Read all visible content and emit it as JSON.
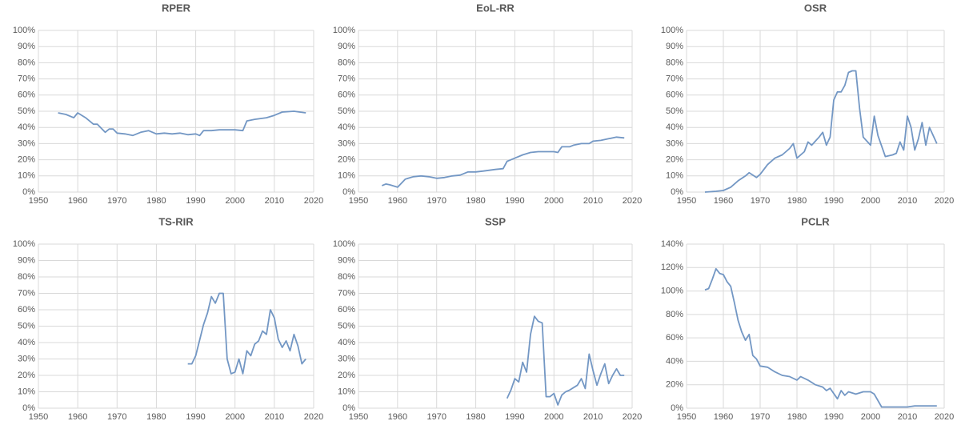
{
  "chart_data": [
    {
      "type": "line",
      "title": "RPER",
      "color": "#7397c4",
      "grid": true,
      "x": [
        1955,
        1957,
        1959,
        1960,
        1962,
        1964,
        1965,
        1967,
        1968,
        1969,
        1970,
        1972,
        1974,
        1976,
        1978,
        1980,
        1982,
        1984,
        1986,
        1988,
        1990,
        1991,
        1992,
        1994,
        1996,
        1998,
        2000,
        2002,
        2003,
        2005,
        2008,
        2010,
        2012,
        2015,
        2018
      ],
      "values": [
        49,
        48,
        46,
        49,
        46,
        42,
        42,
        37,
        39,
        39,
        36.5,
        36,
        35,
        37,
        38,
        36,
        36.5,
        36,
        36.5,
        35.5,
        36,
        35,
        38,
        38,
        38.5,
        38.5,
        38.5,
        38,
        44,
        45,
        46,
        47.5,
        49.5,
        50,
        49
      ],
      "xlim": [
        1950,
        2020
      ],
      "xticks": [
        1950,
        1960,
        1970,
        1980,
        1990,
        2000,
        2010,
        2020
      ],
      "ylim": [
        0,
        100
      ],
      "yticks": [
        {
          "value": 0,
          "label": "0%"
        },
        {
          "value": 10,
          "label": "10%"
        },
        {
          "value": 20,
          "label": "20%"
        },
        {
          "value": 30,
          "label": "30%"
        },
        {
          "value": 40,
          "label": "40%"
        },
        {
          "value": 50,
          "label": "50%"
        },
        {
          "value": 60,
          "label": "60%"
        },
        {
          "value": 70,
          "label": "70%"
        },
        {
          "value": 80,
          "label": "80%"
        },
        {
          "value": 90,
          "label": "90%"
        },
        {
          "value": 100,
          "label": "100%"
        }
      ]
    },
    {
      "type": "line",
      "title": "EoL-RR",
      "color": "#7397c4",
      "grid": true,
      "x": [
        1956,
        1957,
        1958,
        1960,
        1962,
        1964,
        1966,
        1968,
        1970,
        1972,
        1974,
        1976,
        1978,
        1980,
        1982,
        1985,
        1987,
        1988,
        1990,
        1992,
        1994,
        1996,
        1998,
        2000,
        2001,
        2002,
        2004,
        2005,
        2007,
        2009,
        2010,
        2012,
        2014,
        2016,
        2018
      ],
      "values": [
        4,
        5,
        4.5,
        3,
        8,
        9.5,
        10,
        9.5,
        8.5,
        9,
        10,
        10.5,
        12.5,
        12.5,
        13,
        14,
        14.5,
        19,
        21,
        23,
        24.5,
        25,
        25,
        25,
        24.5,
        28,
        28,
        29,
        30,
        30,
        31.5,
        32,
        33,
        34,
        33.5
      ],
      "xlim": [
        1950,
        2020
      ],
      "xticks": [
        1950,
        1960,
        1970,
        1980,
        1990,
        2000,
        2010,
        2020
      ],
      "ylim": [
        0,
        100
      ],
      "yticks": [
        {
          "value": 0,
          "label": "0%"
        },
        {
          "value": 10,
          "label": "10%"
        },
        {
          "value": 20,
          "label": "20%"
        },
        {
          "value": 30,
          "label": "30%"
        },
        {
          "value": 40,
          "label": "40%"
        },
        {
          "value": 50,
          "label": "50%"
        },
        {
          "value": 60,
          "label": "60%"
        },
        {
          "value": 70,
          "label": "70%"
        },
        {
          "value": 80,
          "label": "80%"
        },
        {
          "value": 90,
          "label": "90%"
        },
        {
          "value": 100,
          "label": "100%"
        }
      ]
    },
    {
      "type": "line",
      "title": "OSR",
      "color": "#7397c4",
      "grid": true,
      "x": [
        1955,
        1958,
        1960,
        1962,
        1964,
        1966,
        1967,
        1969,
        1970,
        1972,
        1974,
        1976,
        1978,
        1979,
        1980,
        1982,
        1983,
        1984,
        1986,
        1987,
        1988,
        1989,
        1990,
        1991,
        1992,
        1993,
        1994,
        1995,
        1996,
        1997,
        1998,
        2000,
        2001,
        2002,
        2004,
        2006,
        2007,
        2008,
        2009,
        2010,
        2011,
        2012,
        2013,
        2014,
        2015,
        2016,
        2017,
        2018
      ],
      "values": [
        0,
        0.5,
        1,
        3,
        7,
        10,
        12,
        9,
        11,
        17,
        21,
        23,
        27,
        30,
        21,
        25,
        31,
        29,
        34,
        37,
        29,
        34,
        57,
        62,
        62,
        66,
        74,
        75,
        75,
        52,
        34,
        29,
        47,
        35,
        22,
        23,
        24,
        31,
        26,
        47,
        40,
        26,
        33,
        43,
        29,
        40,
        35,
        30
      ],
      "xlim": [
        1950,
        2020
      ],
      "xticks": [
        1950,
        1960,
        1970,
        1980,
        1990,
        2000,
        2010,
        2020
      ],
      "ylim": [
        0,
        100
      ],
      "yticks": [
        {
          "value": 0,
          "label": "0%"
        },
        {
          "value": 10,
          "label": "10%"
        },
        {
          "value": 20,
          "label": "20%"
        },
        {
          "value": 30,
          "label": "30%"
        },
        {
          "value": 40,
          "label": "40%"
        },
        {
          "value": 50,
          "label": "50%"
        },
        {
          "value": 60,
          "label": "60%"
        },
        {
          "value": 70,
          "label": "70%"
        },
        {
          "value": 80,
          "label": "80%"
        },
        {
          "value": 90,
          "label": "90%"
        },
        {
          "value": 100,
          "label": "100%"
        }
      ]
    },
    {
      "type": "line",
      "title": "TS-RIR",
      "color": "#7397c4",
      "grid": true,
      "x": [
        1988,
        1989,
        1990,
        1992,
        1993,
        1994,
        1995,
        1996,
        1997,
        1998,
        1999,
        2000,
        2001,
        2002,
        2003,
        2004,
        2005,
        2006,
        2007,
        2008,
        2009,
        2010,
        2011,
        2012,
        2013,
        2014,
        2015,
        2016,
        2017,
        2018
      ],
      "values": [
        27,
        27,
        32,
        51,
        58,
        68,
        64,
        70,
        70,
        30,
        21,
        22,
        30,
        21,
        35,
        32,
        39,
        41,
        47,
        45,
        60,
        55,
        42,
        37,
        41,
        35,
        45,
        38,
        27,
        30
      ],
      "xlim": [
        1950,
        2020
      ],
      "xticks": [
        1950,
        1960,
        1970,
        1980,
        1990,
        2000,
        2010,
        2020
      ],
      "ylim": [
        0,
        100
      ],
      "yticks": [
        {
          "value": 0,
          "label": "0%"
        },
        {
          "value": 10,
          "label": "10%"
        },
        {
          "value": 20,
          "label": "20%"
        },
        {
          "value": 30,
          "label": "30%"
        },
        {
          "value": 40,
          "label": "40%"
        },
        {
          "value": 50,
          "label": "50%"
        },
        {
          "value": 60,
          "label": "60%"
        },
        {
          "value": 70,
          "label": "70%"
        },
        {
          "value": 80,
          "label": "80%"
        },
        {
          "value": 90,
          "label": "90%"
        },
        {
          "value": 100,
          "label": "100%"
        }
      ]
    },
    {
      "type": "line",
      "title": "SSP",
      "color": "#7397c4",
      "grid": true,
      "x": [
        1988,
        1989,
        1990,
        1991,
        1992,
        1993,
        1994,
        1995,
        1996,
        1997,
        1998,
        1999,
        2000,
        2001,
        2002,
        2003,
        2004,
        2006,
        2007,
        2008,
        2009,
        2010,
        2011,
        2012,
        2013,
        2014,
        2015,
        2016,
        2017,
        2018
      ],
      "values": [
        6,
        11,
        18,
        16,
        28,
        22,
        45,
        56,
        53,
        52,
        7,
        7,
        9,
        2,
        8,
        10,
        11,
        14,
        18,
        12,
        33,
        23,
        14,
        21,
        27,
        15,
        20,
        24,
        20,
        20
      ],
      "xlim": [
        1950,
        2020
      ],
      "xticks": [
        1950,
        1960,
        1970,
        1980,
        1990,
        2000,
        2010,
        2020
      ],
      "ylim": [
        0,
        100
      ],
      "yticks": [
        {
          "value": 0,
          "label": "0%"
        },
        {
          "value": 10,
          "label": "10%"
        },
        {
          "value": 20,
          "label": "20%"
        },
        {
          "value": 30,
          "label": "30%"
        },
        {
          "value": 40,
          "label": "40%"
        },
        {
          "value": 50,
          "label": "50%"
        },
        {
          "value": 60,
          "label": "60%"
        },
        {
          "value": 70,
          "label": "70%"
        },
        {
          "value": 80,
          "label": "80%"
        },
        {
          "value": 90,
          "label": "90%"
        },
        {
          "value": 100,
          "label": "100%"
        }
      ]
    },
    {
      "type": "line",
      "title": "PCLR",
      "color": "#7397c4",
      "grid": true,
      "x": [
        1955,
        1956,
        1957,
        1958,
        1959,
        1960,
        1961,
        1962,
        1963,
        1964,
        1965,
        1966,
        1967,
        1968,
        1969,
        1970,
        1972,
        1974,
        1976,
        1978,
        1980,
        1981,
        1983,
        1985,
        1987,
        1988,
        1989,
        1991,
        1992,
        1993,
        1994,
        1996,
        1998,
        2000,
        2001,
        2003,
        2005,
        2010,
        2012,
        2015,
        2018
      ],
      "values": [
        101,
        102,
        110,
        119,
        115,
        114,
        108,
        104,
        90,
        75,
        65,
        58,
        63,
        45,
        42,
        36,
        35,
        31,
        28,
        27,
        24,
        27,
        24,
        20,
        18,
        15,
        17,
        8,
        15,
        11,
        14,
        12,
        14,
        14,
        12,
        1,
        1,
        1,
        2,
        2,
        2
      ],
      "xlim": [
        1950,
        2020
      ],
      "xticks": [
        1950,
        1960,
        1970,
        1980,
        1990,
        2000,
        2010,
        2020
      ],
      "ylim": [
        0,
        140
      ],
      "yticks": [
        {
          "value": 0,
          "label": "0%"
        },
        {
          "value": 20,
          "label": "20%"
        },
        {
          "value": 40,
          "label": "40%"
        },
        {
          "value": 60,
          "label": "60%"
        },
        {
          "value": 80,
          "label": "80%"
        },
        {
          "value": 100,
          "label": "100%"
        },
        {
          "value": 120,
          "label": "120%"
        },
        {
          "value": 140,
          "label": "140%"
        }
      ]
    }
  ]
}
